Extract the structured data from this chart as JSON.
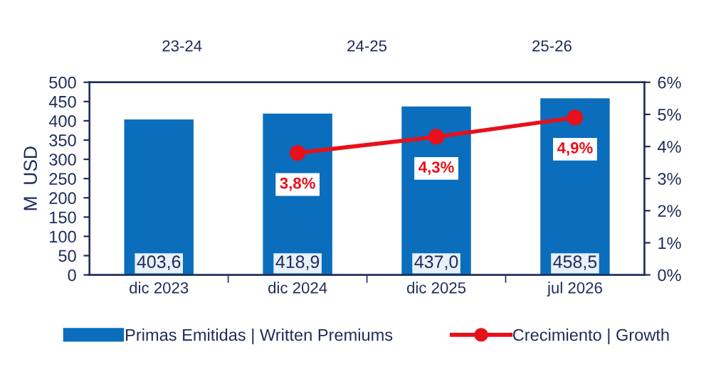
{
  "chart_data": {
    "type": "bar",
    "ylabel": "M  USD",
    "categories": [
      "dic 2023",
      "dic 2024",
      "dic 2025",
      "jul 2026"
    ],
    "annotations": [
      "23-24",
      "24-25",
      "25-26"
    ],
    "ylim": [
      0,
      500
    ],
    "yticks": [
      0,
      50,
      100,
      150,
      200,
      250,
      300,
      350,
      400,
      450,
      500
    ],
    "y2lim": [
      0,
      6
    ],
    "y2ticks": [
      {
        "value": 0,
        "label": "0%"
      },
      {
        "value": 1,
        "label": "1%"
      },
      {
        "value": 2,
        "label": "2%"
      },
      {
        "value": 3,
        "label": "3%"
      },
      {
        "value": 4,
        "label": "4%"
      },
      {
        "value": 5,
        "label": "5%"
      },
      {
        "value": 6,
        "label": "6%"
      }
    ],
    "series": [
      {
        "name": "Primas Emitidas | Written Premiums",
        "color": "#0a6ebd",
        "values": [
          403.6,
          418.9,
          437.0,
          458.5
        ],
        "value_labels": [
          "403,6",
          "418,9",
          "437,0",
          "458,5"
        ]
      },
      {
        "name": "Crecimiento | Growth",
        "type": "line",
        "axis": "y2",
        "color": "#e8101a",
        "values": [
          null,
          3.8,
          4.3,
          4.9
        ],
        "value_labels": [
          null,
          "3,8%",
          "4,3%",
          "4,9%"
        ]
      }
    ],
    "marker": "circle",
    "grid": false,
    "legend": "bottom"
  }
}
